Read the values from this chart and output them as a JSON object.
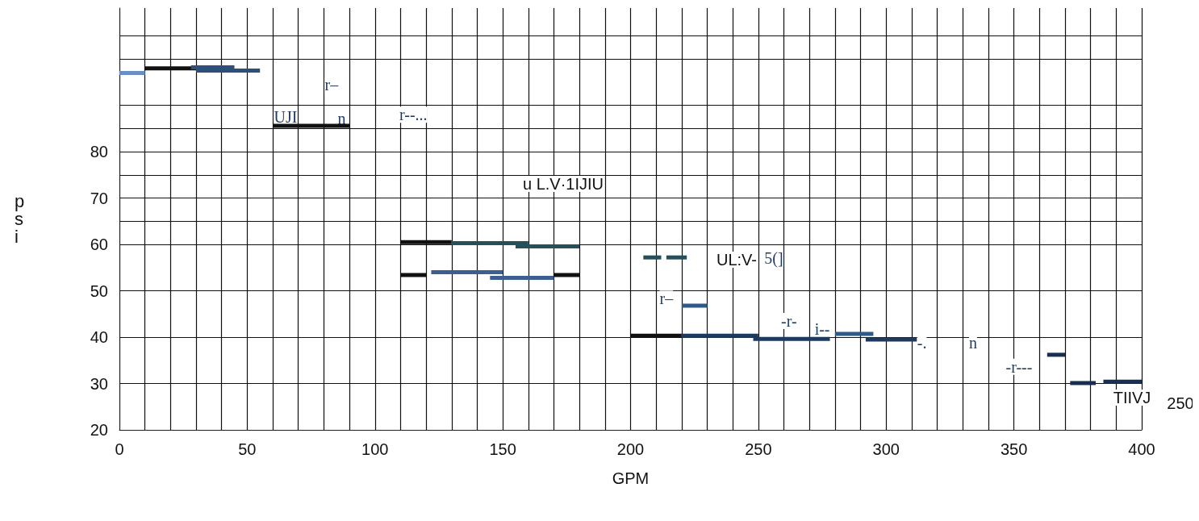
{
  "chart_data": {
    "type": "line",
    "xlabel": "GPM",
    "ylabel": "psi",
    "xlim": [
      0,
      400
    ],
    "ylim": [
      20,
      111
    ],
    "xticks": [
      0,
      {
        "value": 10,
        "label": null
      },
      {
        "value": 20,
        "label": null
      },
      {
        "value": 30,
        "label": null
      },
      {
        "value": 40,
        "label": null
      },
      50,
      {
        "value": 60,
        "label": null
      },
      {
        "value": 70,
        "label": null
      },
      {
        "value": 80,
        "label": null
      },
      {
        "value": 90,
        "label": null
      },
      100,
      {
        "value": 110,
        "label": null
      },
      {
        "value": 120,
        "label": null
      },
      {
        "value": 130,
        "label": null
      },
      {
        "value": 140,
        "label": null
      },
      150,
      {
        "value": 160,
        "label": null
      },
      {
        "value": 170,
        "label": null
      },
      {
        "value": 180,
        "label": null
      },
      {
        "value": 190,
        "label": null
      },
      200,
      {
        "value": 210,
        "label": null
      },
      {
        "value": 220,
        "label": null
      },
      {
        "value": 230,
        "label": null
      },
      {
        "value": 240,
        "label": null
      },
      250,
      {
        "value": 260,
        "label": null
      },
      {
        "value": 270,
        "label": null
      },
      {
        "value": 280,
        "label": null
      },
      {
        "value": 290,
        "label": null
      },
      300,
      {
        "value": 310,
        "label": null
      },
      {
        "value": 320,
        "label": null
      },
      {
        "value": 330,
        "label": null
      },
      {
        "value": 340,
        "label": null
      },
      350,
      {
        "value": 360,
        "label": null
      },
      {
        "value": 370,
        "label": null
      },
      {
        "value": 380,
        "label": null
      },
      {
        "value": 390,
        "label": null
      },
      400
    ],
    "yticks": [
      20,
      30,
      40,
      50,
      60,
      {
        "value": 65,
        "label": null
      },
      70,
      {
        "value": 75,
        "label": null
      },
      80,
      {
        "value": 85,
        "label": null
      },
      {
        "value": 90,
        "label": null
      },
      {
        "value": 100,
        "label": null
      },
      {
        "value": 105,
        "label": null
      }
    ],
    "grid": true,
    "marker": "none",
    "line_style": "solid",
    "series": [
      {
        "color": "#6a8fc0",
        "x": [
          0,
          10
        ],
        "values": [
          97,
          97
        ]
      },
      {
        "color": "#111111",
        "x": [
          10,
          30
        ],
        "values": [
          98,
          98
        ]
      },
      {
        "color": "#2e4f7a",
        "x": [
          28,
          45
        ],
        "values": [
          98.2,
          98.2
        ]
      },
      {
        "color": "#2e4f7a",
        "x": [
          30,
          55
        ],
        "values": [
          97.5,
          97.5
        ]
      },
      {
        "color": "#111111",
        "x": [
          60,
          90
        ],
        "values": [
          85.6,
          85.6
        ]
      },
      {
        "color": "#111111",
        "x": [
          110,
          130
        ],
        "values": [
          60.5,
          60.5
        ]
      },
      {
        "color": "#254f5a",
        "x": [
          130,
          160
        ],
        "values": [
          60.3,
          60.3
        ]
      },
      {
        "color": "#254f5a",
        "x": [
          155,
          180
        ],
        "values": [
          59.6,
          59.6
        ]
      },
      {
        "color": "#111111",
        "x": [
          110,
          120
        ],
        "values": [
          53.4,
          53.4
        ]
      },
      {
        "color": "#3d5f90",
        "x": [
          122,
          150
        ],
        "values": [
          54,
          54
        ]
      },
      {
        "color": "#3d5f90",
        "x": [
          145,
          170
        ],
        "values": [
          52.8,
          52.8
        ]
      },
      {
        "color": "#111111",
        "x": [
          170,
          180
        ],
        "values": [
          53.4,
          53.4
        ]
      },
      {
        "color": "#254f5a",
        "x": [
          205,
          212
        ],
        "values": [
          57.2,
          57.2
        ]
      },
      {
        "color": "#254f5a",
        "x": [
          214,
          222
        ],
        "values": [
          57.2,
          57.2
        ]
      },
      {
        "color": "#2e5a8a",
        "x": [
          220,
          230
        ],
        "values": [
          46.8,
          46.8
        ]
      },
      {
        "color": "#111111",
        "x": [
          200,
          220
        ],
        "values": [
          40.3,
          40.3
        ]
      },
      {
        "color": "#1f3a5f",
        "x": [
          220,
          250
        ],
        "values": [
          40.3,
          40.3
        ]
      },
      {
        "color": "#1f3a5f",
        "x": [
          248,
          278
        ],
        "values": [
          39.6,
          39.6
        ]
      },
      {
        "color": "#2e5a8a",
        "x": [
          280,
          295
        ],
        "values": [
          40.7,
          40.7
        ]
      },
      {
        "color": "#1f3a5f",
        "x": [
          292,
          312
        ],
        "values": [
          39.5,
          39.5
        ]
      },
      {
        "color": "#17304f",
        "x": [
          363,
          370
        ],
        "values": [
          36.2,
          36.2
        ]
      },
      {
        "color": "#17304f",
        "x": [
          372,
          382
        ],
        "values": [
          30.1,
          30.1
        ]
      },
      {
        "color": "#17304f",
        "x": [
          385,
          400
        ],
        "values": [
          30.4,
          30.4
        ]
      }
    ],
    "annotations": [
      {
        "text": "r–",
        "x": 83,
        "y": 94.4
      },
      {
        "text": "UJI",
        "x": 65,
        "y": 87.5
      },
      {
        "text": "n",
        "x": 87,
        "y": 87.2
      },
      {
        "text": "r--...",
        "x": 115,
        "y": 88
      },
      "u L.V·1IJIU",
      "UL:V-",
      {
        "text": "5(]",
        "x": 256,
        "y": 57
      },
      {
        "text": "r–",
        "x": 214,
        "y": 48.3
      },
      {
        "text": "-r-",
        "x": 262,
        "y": 43.5
      },
      {
        "text": "i--",
        "x": 275,
        "y": 41.7
      },
      {
        "text": "-.",
        "x": 314,
        "y": 38.8
      },
      {
        "text": "n",
        "x": 334,
        "y": 38.8
      },
      {
        "text": "-r---",
        "x": 352,
        "y": 33.6
      },
      "TIIVJ",
      "250"
    ]
  }
}
